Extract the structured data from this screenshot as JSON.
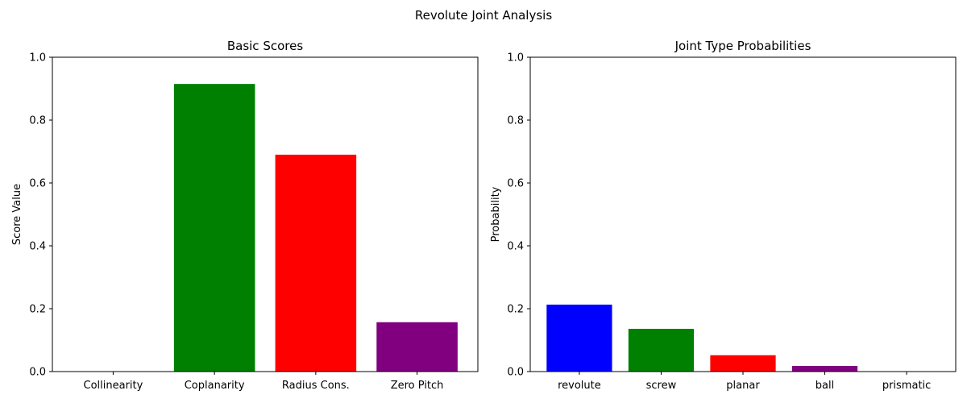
{
  "figure": {
    "suptitle": "Revolute Joint Analysis"
  },
  "chart_data": [
    {
      "type": "bar",
      "title": "Basic Scores",
      "xlabel": "",
      "ylabel": "Score Value",
      "categories": [
        "Collinearity",
        "Coplanarity",
        "Radius Cons.",
        "Zero Pitch"
      ],
      "values": [
        0.0,
        0.915,
        0.69,
        0.157
      ],
      "colors": [
        "#0000ff",
        "#008000",
        "#ff0000",
        "#800080"
      ],
      "ylim": [
        0,
        1
      ],
      "yticks": [
        "0.0",
        "0.2",
        "0.4",
        "0.6",
        "0.8",
        "1.0"
      ],
      "grid": false
    },
    {
      "type": "bar",
      "title": "Joint Type Probabilities",
      "xlabel": "",
      "ylabel": "Probability",
      "categories": [
        "revolute",
        "screw",
        "planar",
        "ball",
        "prismatic"
      ],
      "values": [
        0.213,
        0.136,
        0.052,
        0.018,
        0.0
      ],
      "colors": [
        "#0000ff",
        "#008000",
        "#ff0000",
        "#800080",
        "#ffa500"
      ],
      "ylim": [
        0,
        1
      ],
      "yticks": [
        "0.0",
        "0.2",
        "0.4",
        "0.6",
        "0.8",
        "1.0"
      ],
      "grid": false
    }
  ]
}
